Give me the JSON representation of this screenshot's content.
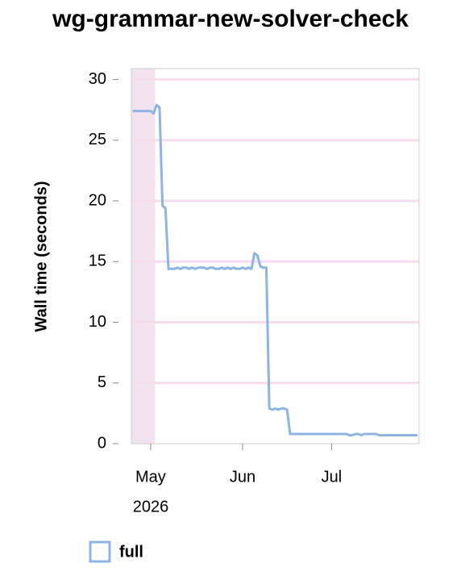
{
  "chart_data": {
    "type": "line",
    "title": "wg-grammar-new-solver-check",
    "y_label": "Wall time (seconds)",
    "x_year_label": "2026",
    "categories": [
      null,
      null,
      null,
      null,
      null,
      null,
      "May",
      null,
      null,
      null,
      null,
      null,
      null,
      null,
      null,
      null,
      null,
      null,
      null,
      null,
      null,
      null,
      null,
      null,
      null,
      null,
      null,
      null,
      null,
      null,
      null,
      null,
      null,
      null,
      null,
      null,
      null,
      "Jun",
      null,
      null,
      null,
      null,
      null,
      null,
      null,
      null,
      null,
      null,
      null,
      null,
      null,
      null,
      null,
      null,
      null,
      null,
      null,
      null,
      null,
      null,
      null,
      null,
      null,
      null,
      null,
      null,
      null,
      "Jul",
      null,
      null,
      null,
      null,
      null,
      null,
      null,
      null,
      null,
      null,
      null,
      null,
      null,
      null,
      null,
      null,
      null,
      null,
      null,
      null,
      null,
      null,
      null,
      null,
      null,
      null,
      null,
      null,
      null
    ],
    "series": [
      {
        "name": "full",
        "color": "#8db4e2",
        "values": [
          27.4,
          27.4,
          27.4,
          27.4,
          27.4,
          27.4,
          27.4,
          27.2,
          27.9,
          27.7,
          19.6,
          19.4,
          14.4,
          14.4,
          14.4,
          14.5,
          14.4,
          14.5,
          14.5,
          14.4,
          14.5,
          14.4,
          14.5,
          14.5,
          14.5,
          14.4,
          14.5,
          14.5,
          14.4,
          14.4,
          14.5,
          14.4,
          14.5,
          14.4,
          14.5,
          14.4,
          14.4,
          14.5,
          14.4,
          14.5,
          14.4,
          15.7,
          15.5,
          14.6,
          14.5,
          14.5,
          2.9,
          2.8,
          2.9,
          2.8,
          2.9,
          2.9,
          2.8,
          0.8,
          0.8,
          0.8,
          0.8,
          0.8,
          0.8,
          0.8,
          0.8,
          0.8,
          0.8,
          0.8,
          0.8,
          0.8,
          0.8,
          0.8,
          0.8,
          0.8,
          0.8,
          0.8,
          0.8,
          0.7,
          0.7,
          0.8,
          0.8,
          0.7,
          0.8,
          0.8,
          0.8,
          0.8,
          0.8,
          0.7,
          0.7,
          0.7,
          0.7,
          0.7,
          0.7,
          0.7,
          0.7,
          0.7,
          0.7,
          0.7,
          0.7,
          0.7,
          0.7
        ]
      }
    ],
    "shaded_range": [
      0,
      7
    ],
    "shade_color": "#f3e3f1",
    "ylim": [
      0,
      30.9
    ],
    "yticks": [
      0,
      5,
      10,
      15,
      20,
      25,
      30
    ],
    "grid": true,
    "grid_color": "#f5ddec"
  }
}
